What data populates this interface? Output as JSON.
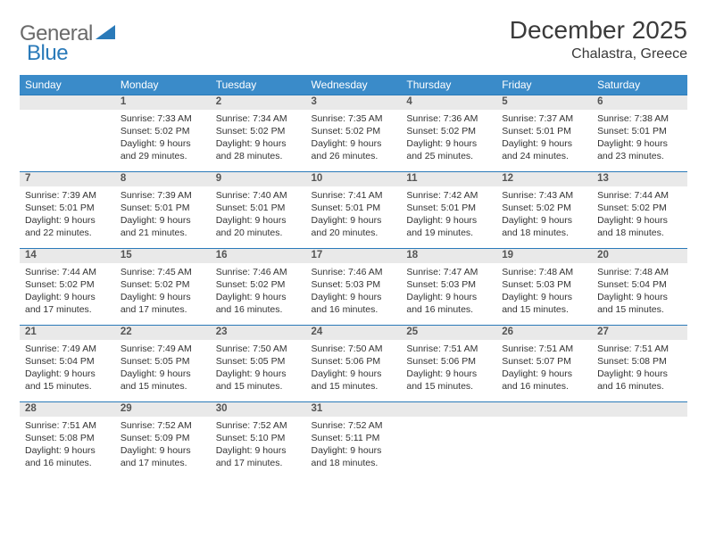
{
  "logo": {
    "text1": "General",
    "text2": "Blue"
  },
  "title": "December 2025",
  "location": "Chalastra, Greece",
  "colors": {
    "header_bg": "#3a8bc9",
    "header_text": "#ffffff",
    "border": "#2a7ab9",
    "daynum_bg": "#e9e9e9",
    "logo_gray": "#6a6a6a",
    "logo_blue": "#2a7ab9"
  },
  "dayHeaders": [
    "Sunday",
    "Monday",
    "Tuesday",
    "Wednesday",
    "Thursday",
    "Friday",
    "Saturday"
  ],
  "weeks": [
    [
      {
        "n": "",
        "l1": "",
        "l2": "",
        "l3": "",
        "l4": ""
      },
      {
        "n": "1",
        "l1": "Sunrise: 7:33 AM",
        "l2": "Sunset: 5:02 PM",
        "l3": "Daylight: 9 hours",
        "l4": "and 29 minutes."
      },
      {
        "n": "2",
        "l1": "Sunrise: 7:34 AM",
        "l2": "Sunset: 5:02 PM",
        "l3": "Daylight: 9 hours",
        "l4": "and 28 minutes."
      },
      {
        "n": "3",
        "l1": "Sunrise: 7:35 AM",
        "l2": "Sunset: 5:02 PM",
        "l3": "Daylight: 9 hours",
        "l4": "and 26 minutes."
      },
      {
        "n": "4",
        "l1": "Sunrise: 7:36 AM",
        "l2": "Sunset: 5:02 PM",
        "l3": "Daylight: 9 hours",
        "l4": "and 25 minutes."
      },
      {
        "n": "5",
        "l1": "Sunrise: 7:37 AM",
        "l2": "Sunset: 5:01 PM",
        "l3": "Daylight: 9 hours",
        "l4": "and 24 minutes."
      },
      {
        "n": "6",
        "l1": "Sunrise: 7:38 AM",
        "l2": "Sunset: 5:01 PM",
        "l3": "Daylight: 9 hours",
        "l4": "and 23 minutes."
      }
    ],
    [
      {
        "n": "7",
        "l1": "Sunrise: 7:39 AM",
        "l2": "Sunset: 5:01 PM",
        "l3": "Daylight: 9 hours",
        "l4": "and 22 minutes."
      },
      {
        "n": "8",
        "l1": "Sunrise: 7:39 AM",
        "l2": "Sunset: 5:01 PM",
        "l3": "Daylight: 9 hours",
        "l4": "and 21 minutes."
      },
      {
        "n": "9",
        "l1": "Sunrise: 7:40 AM",
        "l2": "Sunset: 5:01 PM",
        "l3": "Daylight: 9 hours",
        "l4": "and 20 minutes."
      },
      {
        "n": "10",
        "l1": "Sunrise: 7:41 AM",
        "l2": "Sunset: 5:01 PM",
        "l3": "Daylight: 9 hours",
        "l4": "and 20 minutes."
      },
      {
        "n": "11",
        "l1": "Sunrise: 7:42 AM",
        "l2": "Sunset: 5:01 PM",
        "l3": "Daylight: 9 hours",
        "l4": "and 19 minutes."
      },
      {
        "n": "12",
        "l1": "Sunrise: 7:43 AM",
        "l2": "Sunset: 5:02 PM",
        "l3": "Daylight: 9 hours",
        "l4": "and 18 minutes."
      },
      {
        "n": "13",
        "l1": "Sunrise: 7:44 AM",
        "l2": "Sunset: 5:02 PM",
        "l3": "Daylight: 9 hours",
        "l4": "and 18 minutes."
      }
    ],
    [
      {
        "n": "14",
        "l1": "Sunrise: 7:44 AM",
        "l2": "Sunset: 5:02 PM",
        "l3": "Daylight: 9 hours",
        "l4": "and 17 minutes."
      },
      {
        "n": "15",
        "l1": "Sunrise: 7:45 AM",
        "l2": "Sunset: 5:02 PM",
        "l3": "Daylight: 9 hours",
        "l4": "and 17 minutes."
      },
      {
        "n": "16",
        "l1": "Sunrise: 7:46 AM",
        "l2": "Sunset: 5:02 PM",
        "l3": "Daylight: 9 hours",
        "l4": "and 16 minutes."
      },
      {
        "n": "17",
        "l1": "Sunrise: 7:46 AM",
        "l2": "Sunset: 5:03 PM",
        "l3": "Daylight: 9 hours",
        "l4": "and 16 minutes."
      },
      {
        "n": "18",
        "l1": "Sunrise: 7:47 AM",
        "l2": "Sunset: 5:03 PM",
        "l3": "Daylight: 9 hours",
        "l4": "and 16 minutes."
      },
      {
        "n": "19",
        "l1": "Sunrise: 7:48 AM",
        "l2": "Sunset: 5:03 PM",
        "l3": "Daylight: 9 hours",
        "l4": "and 15 minutes."
      },
      {
        "n": "20",
        "l1": "Sunrise: 7:48 AM",
        "l2": "Sunset: 5:04 PM",
        "l3": "Daylight: 9 hours",
        "l4": "and 15 minutes."
      }
    ],
    [
      {
        "n": "21",
        "l1": "Sunrise: 7:49 AM",
        "l2": "Sunset: 5:04 PM",
        "l3": "Daylight: 9 hours",
        "l4": "and 15 minutes."
      },
      {
        "n": "22",
        "l1": "Sunrise: 7:49 AM",
        "l2": "Sunset: 5:05 PM",
        "l3": "Daylight: 9 hours",
        "l4": "and 15 minutes."
      },
      {
        "n": "23",
        "l1": "Sunrise: 7:50 AM",
        "l2": "Sunset: 5:05 PM",
        "l3": "Daylight: 9 hours",
        "l4": "and 15 minutes."
      },
      {
        "n": "24",
        "l1": "Sunrise: 7:50 AM",
        "l2": "Sunset: 5:06 PM",
        "l3": "Daylight: 9 hours",
        "l4": "and 15 minutes."
      },
      {
        "n": "25",
        "l1": "Sunrise: 7:51 AM",
        "l2": "Sunset: 5:06 PM",
        "l3": "Daylight: 9 hours",
        "l4": "and 15 minutes."
      },
      {
        "n": "26",
        "l1": "Sunrise: 7:51 AM",
        "l2": "Sunset: 5:07 PM",
        "l3": "Daylight: 9 hours",
        "l4": "and 16 minutes."
      },
      {
        "n": "27",
        "l1": "Sunrise: 7:51 AM",
        "l2": "Sunset: 5:08 PM",
        "l3": "Daylight: 9 hours",
        "l4": "and 16 minutes."
      }
    ],
    [
      {
        "n": "28",
        "l1": "Sunrise: 7:51 AM",
        "l2": "Sunset: 5:08 PM",
        "l3": "Daylight: 9 hours",
        "l4": "and 16 minutes."
      },
      {
        "n": "29",
        "l1": "Sunrise: 7:52 AM",
        "l2": "Sunset: 5:09 PM",
        "l3": "Daylight: 9 hours",
        "l4": "and 17 minutes."
      },
      {
        "n": "30",
        "l1": "Sunrise: 7:52 AM",
        "l2": "Sunset: 5:10 PM",
        "l3": "Daylight: 9 hours",
        "l4": "and 17 minutes."
      },
      {
        "n": "31",
        "l1": "Sunrise: 7:52 AM",
        "l2": "Sunset: 5:11 PM",
        "l3": "Daylight: 9 hours",
        "l4": "and 18 minutes."
      },
      {
        "n": "",
        "l1": "",
        "l2": "",
        "l3": "",
        "l4": ""
      },
      {
        "n": "",
        "l1": "",
        "l2": "",
        "l3": "",
        "l4": ""
      },
      {
        "n": "",
        "l1": "",
        "l2": "",
        "l3": "",
        "l4": ""
      }
    ]
  ]
}
